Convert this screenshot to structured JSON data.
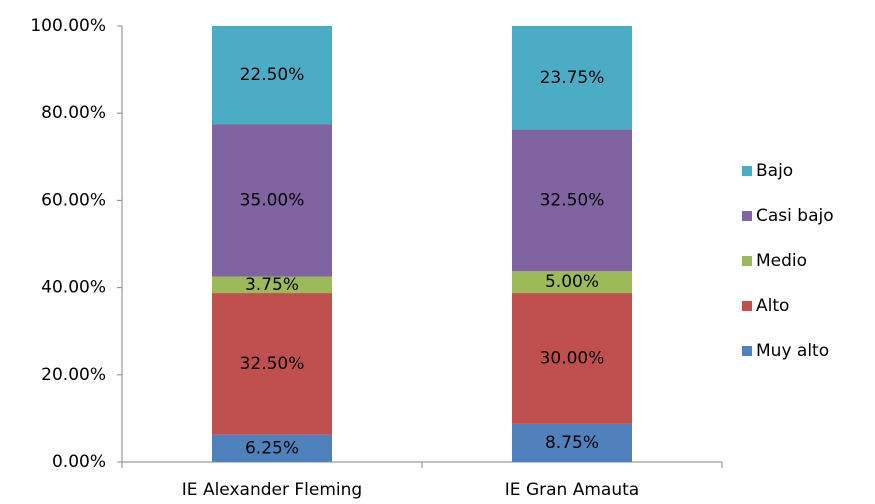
{
  "chart_data": {
    "type": "stacked-bar",
    "categories": [
      "IE Alexander Fleming",
      "IE Gran Amauta"
    ],
    "series": [
      {
        "name": "Muy alto",
        "color": "#4f81bd",
        "values": [
          6.25,
          8.75
        ],
        "value_labels": [
          "6.25%",
          "8.75%"
        ]
      },
      {
        "name": "Alto",
        "color": "#c0504d",
        "values": [
          32.5,
          30
        ],
        "value_labels": [
          "32.50%",
          "30.00%"
        ]
      },
      {
        "name": "Medio",
        "color": "#9bbb59",
        "values": [
          3.75,
          5
        ],
        "value_labels": [
          "3.75%",
          "5.00%"
        ]
      },
      {
        "name": "Casi bajo",
        "color": "#8064a2",
        "values": [
          35,
          32.5
        ],
        "value_labels": [
          "35.00%",
          "32.50%"
        ]
      },
      {
        "name": "Bajo",
        "color": "#4bacc6",
        "values": [
          22.5,
          23.75
        ],
        "value_labels": [
          "22.50%",
          "23.75%"
        ]
      }
    ],
    "ylim": [
      0,
      100
    ],
    "yticks": [
      {
        "value": 0,
        "label": "0.00%"
      },
      {
        "value": 20,
        "label": "20.00%"
      },
      {
        "value": 40,
        "label": "40.00%"
      },
      {
        "value": 60,
        "label": "60.00%"
      },
      {
        "value": 80,
        "label": "80.00%"
      },
      {
        "value": 100,
        "label": "100.00%"
      }
    ],
    "legend": "right",
    "grid": false
  }
}
